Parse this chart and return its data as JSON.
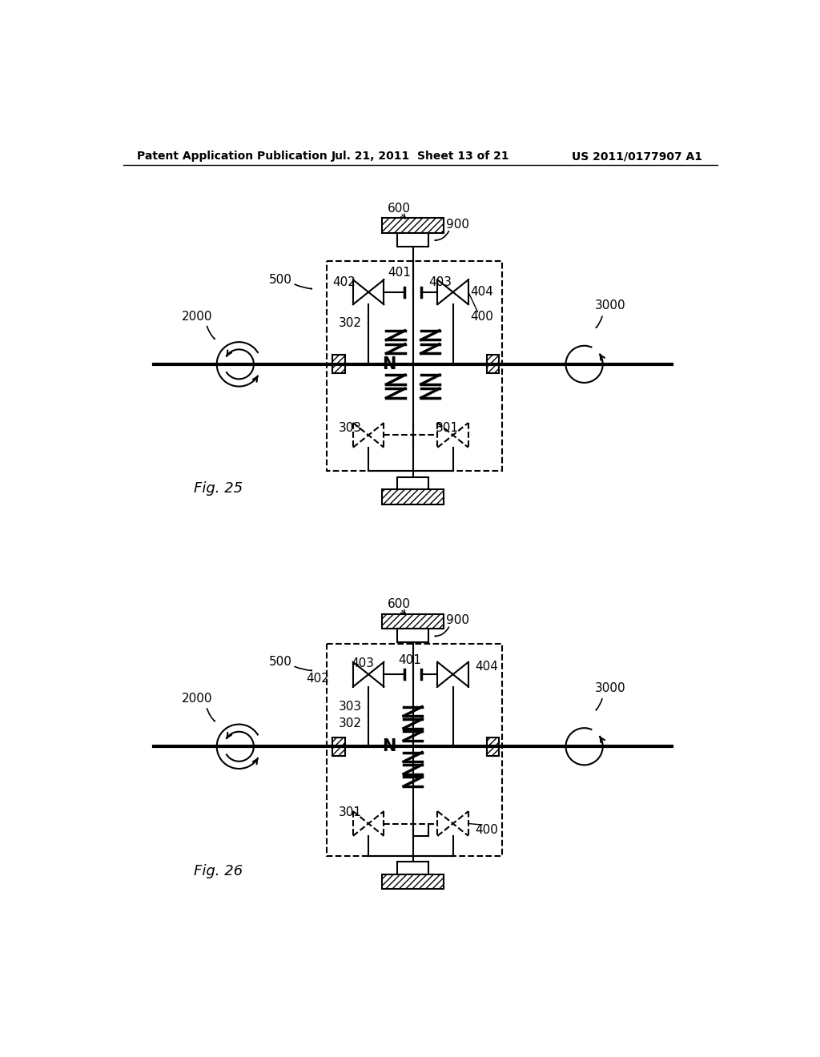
{
  "header_left": "Patent Application Publication",
  "header_mid": "Jul. 21, 2011  Sheet 13 of 21",
  "header_right": "US 2011/0177907 A1",
  "fig25_label": "Fig. 25",
  "fig26_label": "Fig. 26",
  "background": "#ffffff",
  "line_color": "#000000"
}
